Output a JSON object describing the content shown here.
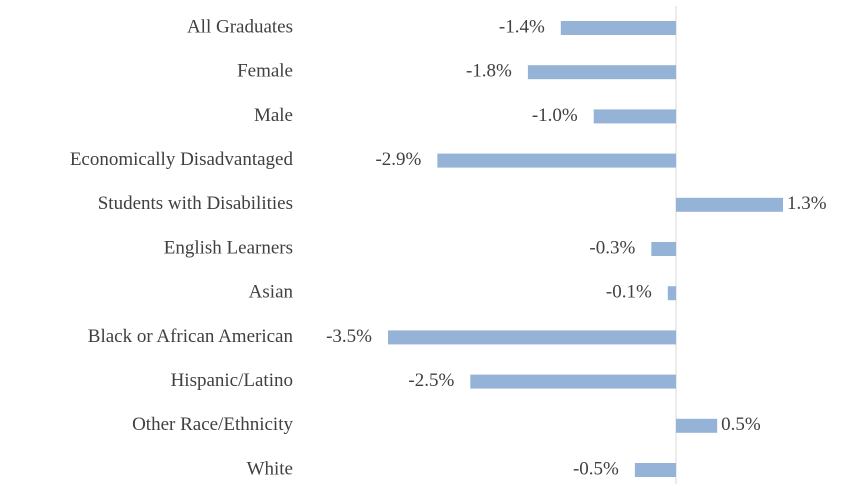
{
  "chart_data": {
    "type": "hbar",
    "categories": [
      "All Graduates",
      "Female",
      "Male",
      "Economically Disadvantaged",
      "Students with Disabilities",
      "English Learners",
      "Asian",
      "Black or African American",
      "Hispanic/Latino",
      "Other Race/Ethnicity",
      "White"
    ],
    "values": [
      -1.4,
      -1.8,
      -1.0,
      -2.9,
      1.3,
      -0.3,
      -0.1,
      -3.5,
      -2.5,
      0.5,
      -0.5
    ],
    "value_labels": [
      "-1.4%",
      "-1.8%",
      "-1.0%",
      "-2.9%",
      "1.3%",
      "-0.3%",
      "-0.1%",
      "-3.5%",
      "-2.5%",
      "0.5%",
      "-0.5%"
    ],
    "color": "#95b3d7",
    "xlim": [
      -3.5,
      1.3
    ]
  }
}
